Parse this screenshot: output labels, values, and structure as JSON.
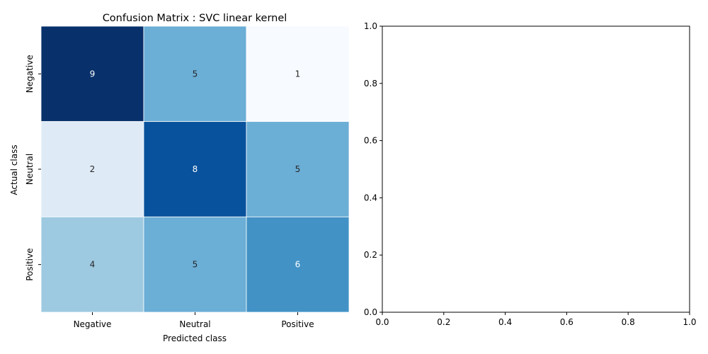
{
  "chart_data": [
    {
      "type": "heatmap",
      "title": "Confusion Matrix : SVC linear kernel",
      "xlabel": "Predicted class",
      "ylabel": "Actual class",
      "x_categories": [
        "Negative",
        "Neutral",
        "Positive"
      ],
      "y_categories": [
        "Negative",
        "Neutral",
        "Positive"
      ],
      "values": [
        [
          9,
          5,
          1
        ],
        [
          2,
          8,
          5
        ],
        [
          4,
          5,
          6
        ]
      ],
      "colormap": "Blues",
      "value_range": [
        1,
        9
      ],
      "grid": false,
      "colorbar": false
    },
    {
      "type": "scatter",
      "title": "",
      "xlabel": "",
      "ylabel": "",
      "xlim": [
        0.0,
        1.0
      ],
      "ylim": [
        0.0,
        1.0
      ],
      "xticks": [
        "0.0",
        "0.2",
        "0.4",
        "0.6",
        "0.8",
        "1.0"
      ],
      "yticks": [
        "0.0",
        "0.2",
        "0.4",
        "0.6",
        "0.8",
        "1.0"
      ],
      "series": [],
      "grid": false
    }
  ]
}
